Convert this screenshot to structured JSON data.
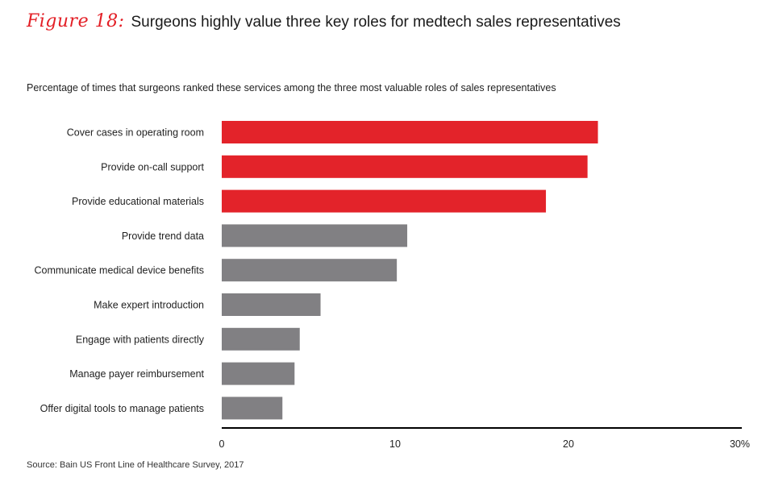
{
  "figure": {
    "label": "Figure 18:",
    "title": "Surgeons highly value three key roles for medtech sales representatives",
    "subtitle": "Percentage of times that surgeons ranked these services among the three most valuable roles of sales representatives",
    "source": "Source: Bain US Front Line of Healthcare Survey, 2017"
  },
  "colors": {
    "highlight": "#e3232a",
    "neutral": "#818083",
    "axis": "#000000",
    "figure_label": "#e31f26"
  },
  "chart_data": {
    "type": "bar",
    "orientation": "horizontal",
    "categories": [
      "Cover cases in operating room",
      "Provide on-call support",
      "Provide educational materials",
      "Provide trend data",
      "Communicate medical device benefits",
      "Make expert introduction",
      "Engage with patients directly",
      "Manage payer reimbursement",
      "Offer digital tools to manage patients"
    ],
    "values": [
      21.7,
      21.1,
      18.7,
      10.7,
      10.1,
      5.7,
      4.5,
      4.2,
      3.5
    ],
    "highlighted": [
      true,
      true,
      true,
      false,
      false,
      false,
      false,
      false,
      false
    ],
    "xlim": [
      0,
      30
    ],
    "x_ticks": [
      {
        "value": 0,
        "label": "0"
      },
      {
        "value": 10,
        "label": "10"
      },
      {
        "value": 20,
        "label": "20"
      },
      {
        "value": 30,
        "label": "30%"
      }
    ],
    "grid": false,
    "legend": "none"
  }
}
